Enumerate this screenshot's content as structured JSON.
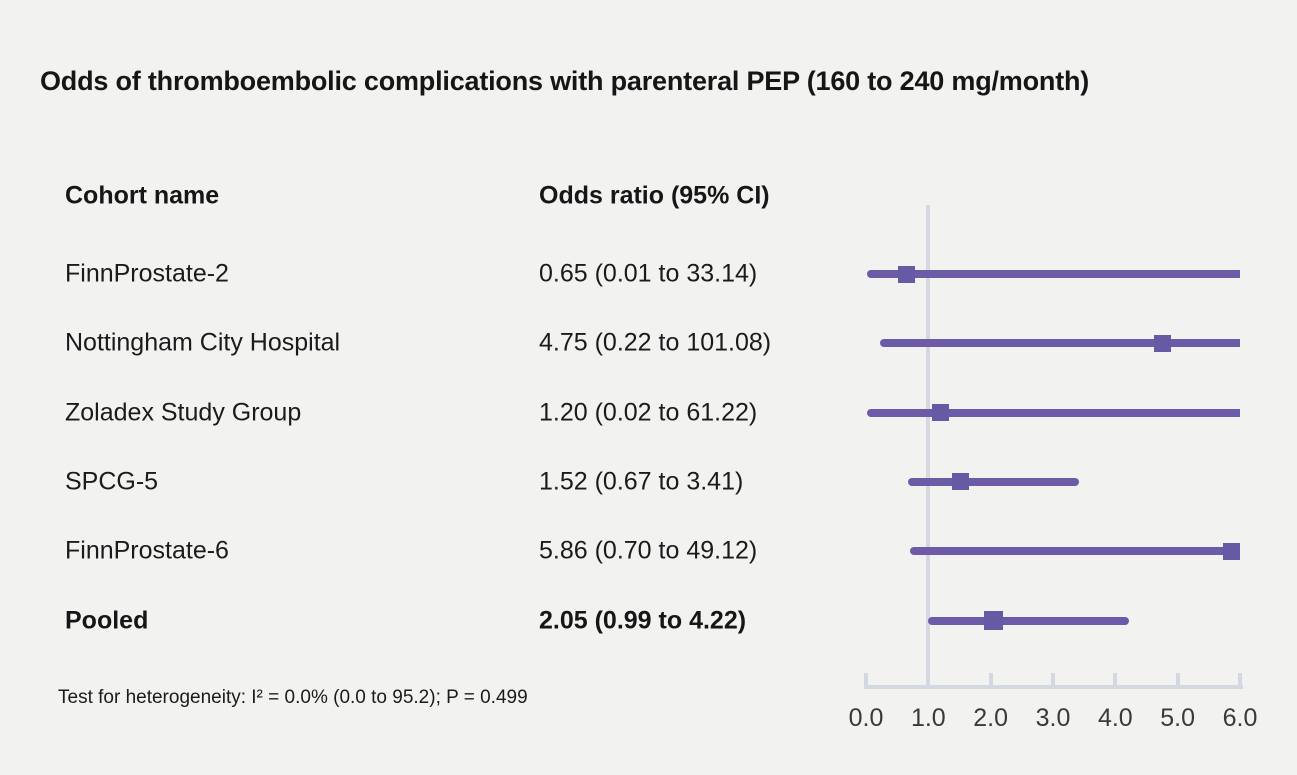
{
  "title": "Odds of thromboembolic complications with parenteral PEP (160 to 240 mg/month)",
  "columns": {
    "cohort": "Cohort name",
    "odds_ratio": "Odds ratio (95% CI)"
  },
  "footnote": "Test for heterogeneity: I² = 0.0% (0.0 to 95.2); P = 0.499",
  "colors": {
    "background": "#F2F2F1",
    "ci_line": "#6C5CA7",
    "marker": "#675AA4",
    "axis": "#D4D8E1",
    "text": "#1b1b1b"
  },
  "chart_data": {
    "type": "scatter",
    "subtype": "forest-plot",
    "title": "Odds of thromboembolic complications with parenteral PEP (160 to 240 mg/month)",
    "xlabel": "",
    "ylabel": "",
    "xlim": [
      0.0,
      6.0
    ],
    "reference_line_x": 1.0,
    "x_ticks": [
      0.0,
      1.0,
      2.0,
      3.0,
      4.0,
      5.0,
      6.0
    ],
    "x_tick_labels": [
      "0.0",
      "1.0",
      "2.0",
      "3.0",
      "4.0",
      "5.0",
      "6.0"
    ],
    "legend_position": "none",
    "grid": false,
    "rows": [
      {
        "label": "FinnProstate-2",
        "value_text": "0.65 (0.01 to 33.14)",
        "or": 0.65,
        "ci_low": 0.01,
        "ci_high": 33.14,
        "pooled": false
      },
      {
        "label": "Nottingham City Hospital",
        "value_text": "4.75 (0.22 to 101.08)",
        "or": 4.75,
        "ci_low": 0.22,
        "ci_high": 101.08,
        "pooled": false
      },
      {
        "label": "Zoladex Study Group",
        "value_text": "1.20 (0.02 to 61.22)",
        "or": 1.2,
        "ci_low": 0.02,
        "ci_high": 61.22,
        "pooled": false
      },
      {
        "label": "SPCG-5",
        "value_text": "1.52 (0.67 to 3.41)",
        "or": 1.52,
        "ci_low": 0.67,
        "ci_high": 3.41,
        "pooled": false
      },
      {
        "label": "FinnProstate-6",
        "value_text": "5.86 (0.70 to 49.12)",
        "or": 5.86,
        "ci_low": 0.7,
        "ci_high": 49.12,
        "pooled": false
      },
      {
        "label": "Pooled",
        "value_text": "2.05 (0.99 to 4.22)",
        "or": 2.05,
        "ci_low": 0.99,
        "ci_high": 4.22,
        "pooled": true
      }
    ]
  }
}
